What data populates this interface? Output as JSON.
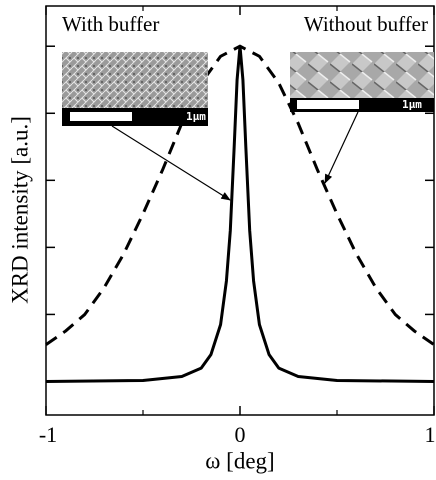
{
  "chart_data": {
    "type": "line",
    "xlabel": "ω [deg]",
    "ylabel": "XRD intensity [a.u.]",
    "xlim": [
      -1,
      1
    ],
    "xticks": [
      -1,
      0,
      1
    ],
    "xminorticks": [
      -0.5,
      0.5
    ],
    "ylim": [
      -0.1,
      1.12
    ],
    "yticks": [
      0,
      0.2,
      0.4,
      0.6,
      0.8,
      1.0
    ],
    "series": [
      {
        "name": "With buffer",
        "color": "#000000",
        "dash": "solid",
        "x": [
          -1,
          -0.5,
          -0.3,
          -0.2,
          -0.15,
          -0.1,
          -0.07,
          -0.05,
          -0.03,
          -0.015,
          0,
          0.015,
          0.03,
          0.05,
          0.07,
          0.1,
          0.15,
          0.2,
          0.3,
          0.5,
          1
        ],
        "values": [
          0,
          0.003,
          0.015,
          0.04,
          0.08,
          0.17,
          0.3,
          0.45,
          0.7,
          0.9,
          1.0,
          0.9,
          0.7,
          0.45,
          0.3,
          0.17,
          0.08,
          0.04,
          0.015,
          0.003,
          0
        ]
      },
      {
        "name": "Without buffer",
        "color": "#000000",
        "dash": "dashed",
        "x": [
          -1,
          -0.9,
          -0.8,
          -0.7,
          -0.6,
          -0.5,
          -0.4,
          -0.3,
          -0.2,
          -0.1,
          0,
          0.1,
          0.2,
          0.3,
          0.4,
          0.5,
          0.6,
          0.7,
          0.8,
          0.9,
          1
        ],
        "values": [
          0.11,
          0.15,
          0.2,
          0.28,
          0.38,
          0.5,
          0.63,
          0.77,
          0.89,
          0.97,
          1.0,
          0.97,
          0.89,
          0.77,
          0.63,
          0.5,
          0.38,
          0.28,
          0.2,
          0.15,
          0.11
        ]
      }
    ],
    "annotations": [
      "With buffer",
      "Without buffer",
      "1μm",
      "1μm"
    ]
  }
}
